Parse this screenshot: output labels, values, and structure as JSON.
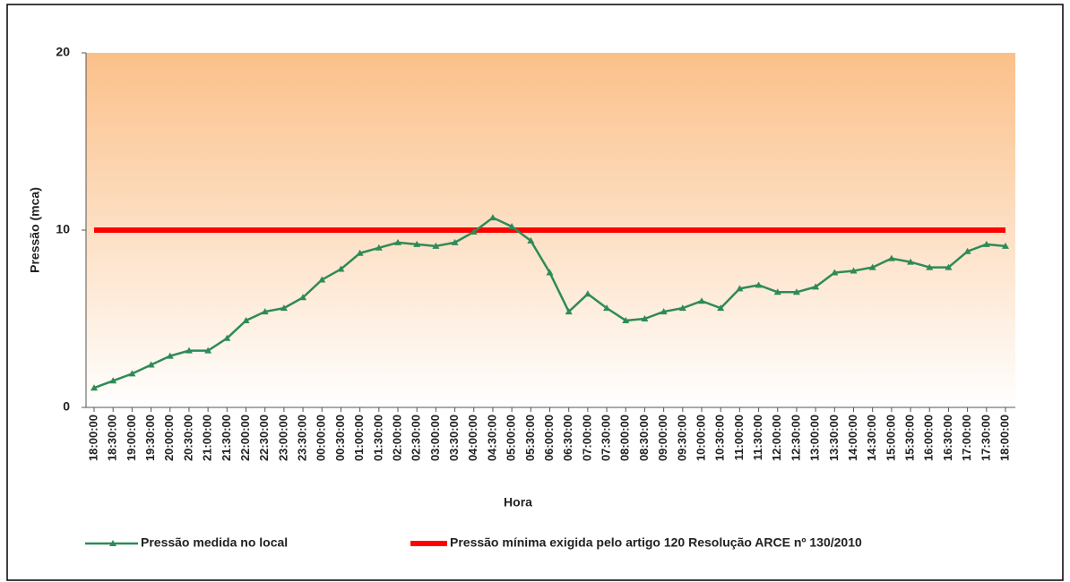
{
  "chart_data": {
    "type": "line",
    "ylabel": "Pressão (mca)",
    "xlabel": "Hora",
    "categories": [
      "18:00:00",
      "18:30:00",
      "19:00:00",
      "19:30:00",
      "20:00:00",
      "20:30:00",
      "21:00:00",
      "21:30:00",
      "22:00:00",
      "22:30:00",
      "23:00:00",
      "23:30:00",
      "00:00:00",
      "00:30:00",
      "01:00:00",
      "01:30:00",
      "02:00:00",
      "02:30:00",
      "03:00:00",
      "03:30:00",
      "04:00:00",
      "04:30:00",
      "05:00:00",
      "05:30:00",
      "06:00:00",
      "06:30:00",
      "07:00:00",
      "07:30:00",
      "08:00:00",
      "08:30:00",
      "09:00:00",
      "09:30:00",
      "10:00:00",
      "10:30:00",
      "11:00:00",
      "11:30:00",
      "12:00:00",
      "12:30:00",
      "13:00:00",
      "13:30:00",
      "14:00:00",
      "14:30:00",
      "15:00:00",
      "15:30:00",
      "16:00:00",
      "16:30:00",
      "17:00:00",
      "17:30:00",
      "18:00:00"
    ],
    "series": [
      {
        "name": "Pressão medida no local",
        "color": "#2e8b57",
        "marker": "triangle",
        "values": [
          1.1,
          1.5,
          1.9,
          2.4,
          2.9,
          3.2,
          3.2,
          3.9,
          4.9,
          5.4,
          5.6,
          6.2,
          7.2,
          7.8,
          8.7,
          9.0,
          9.3,
          9.2,
          9.1,
          9.3,
          9.9,
          10.7,
          10.2,
          9.4,
          7.6,
          5.4,
          6.4,
          5.6,
          4.9,
          5.0,
          5.4,
          5.6,
          6.0,
          5.6,
          6.7,
          6.9,
          6.5,
          6.5,
          6.8,
          7.6,
          7.7,
          7.9,
          8.4,
          8.2,
          7.9,
          7.9,
          8.8,
          9.2,
          9.1
        ]
      },
      {
        "name": "Pressão mínima exigida pelo artigo 120 Resolução ARCE nº 130/2010",
        "color": "#ff0000",
        "values": [
          10,
          10,
          10,
          10,
          10,
          10,
          10,
          10,
          10,
          10,
          10,
          10,
          10,
          10,
          10,
          10,
          10,
          10,
          10,
          10,
          10,
          10,
          10,
          10,
          10,
          10,
          10,
          10,
          10,
          10,
          10,
          10,
          10,
          10,
          10,
          10,
          10,
          10,
          10,
          10,
          10,
          10,
          10,
          10,
          10,
          10,
          10,
          10,
          10
        ]
      }
    ],
    "ylim": [
      0,
      20
    ],
    "yticks": [
      0,
      10,
      20
    ],
    "grid": false
  }
}
